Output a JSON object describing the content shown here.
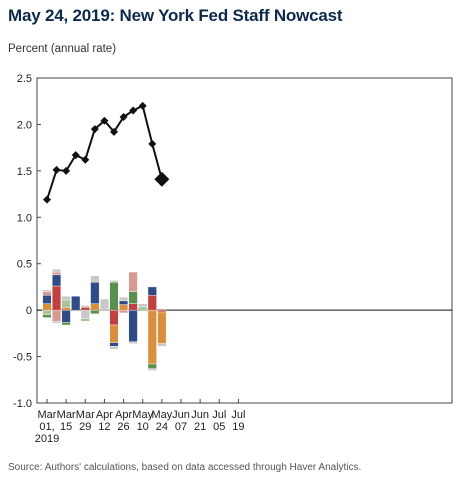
{
  "title": "May 24, 2019: New York Fed Staff Nowcast",
  "unit_label": "Percent (annual rate)",
  "source": "Source: Authors' calculations, based on data accessed through Haver Analytics.",
  "colors": {
    "line": "#111111",
    "navy": "#2e4a87",
    "red": "#c0413f",
    "orange": "#d9903e",
    "green": "#5a8f4e",
    "lightgreen": "#a8c59a",
    "pink": "#d69a90",
    "gray": "#c8c8c8"
  },
  "chart_data": {
    "type": "line+stacked-bar",
    "ylim": [
      -1.0,
      2.5
    ],
    "yticks": [
      "2.5",
      "2.0",
      "1.5",
      "1.0",
      "0.5",
      "0",
      "-0.5",
      "-1.0"
    ],
    "ytick_values": [
      2.5,
      2.0,
      1.5,
      1.0,
      0.5,
      0,
      -0.5,
      -1.0
    ],
    "xticks": [
      {
        "line1": "Mar",
        "line2": "01,",
        "line3": "2019"
      },
      {
        "line1": "Mar",
        "line2": "15",
        "line3": ""
      },
      {
        "line1": "Mar",
        "line2": "29",
        "line3": ""
      },
      {
        "line1": "Apr",
        "line2": "12",
        "line3": ""
      },
      {
        "line1": "Apr",
        "line2": "26",
        "line3": ""
      },
      {
        "line1": "May",
        "line2": "10",
        "line3": ""
      },
      {
        "line1": "May",
        "line2": "24",
        "line3": ""
      },
      {
        "line1": "Jun",
        "line2": "07",
        "line3": ""
      },
      {
        "line1": "Jun",
        "line2": "21",
        "line3": ""
      },
      {
        "line1": "Jul",
        "line2": "05",
        "line3": ""
      },
      {
        "line1": "Jul",
        "line2": "19",
        "line3": ""
      }
    ],
    "weeks": [
      "Mar 01",
      "Mar 08",
      "Mar 15",
      "Mar 22",
      "Mar 29",
      "Apr 05",
      "Apr 12",
      "Apr 19",
      "Apr 26",
      "May 03",
      "May 10",
      "May 17",
      "May 24"
    ],
    "nowcast": [
      1.19,
      1.51,
      1.5,
      1.67,
      1.62,
      1.95,
      2.04,
      1.92,
      2.08,
      2.15,
      2.2,
      1.79,
      1.41
    ],
    "latest_index": 12,
    "contributions": [
      [
        [
          "lightgreen",
          -0.05
        ],
        [
          "green",
          -0.03
        ],
        [
          "orange",
          0.07
        ],
        [
          "navy",
          0.09
        ],
        [
          "pink",
          0.04
        ],
        [
          "gray",
          0.02
        ]
      ],
      [
        [
          "pink",
          -0.12
        ],
        [
          "gray",
          -0.02
        ],
        [
          "red",
          0.26
        ],
        [
          "navy",
          0.12
        ],
        [
          "pink",
          0.03
        ],
        [
          "gray",
          0.03
        ]
      ],
      [
        [
          "navy",
          -0.13
        ],
        [
          "green",
          -0.03
        ],
        [
          "orange",
          0.03
        ],
        [
          "lightgreen",
          0.08
        ],
        [
          "gray",
          0.04
        ]
      ],
      [
        [
          "navy",
          0.15
        ]
      ],
      [
        [
          "gray",
          -0.09
        ],
        [
          "lightgreen",
          -0.03
        ],
        [
          "red",
          0.03
        ],
        [
          "gray",
          0.02
        ]
      ],
      [
        [
          "green",
          -0.04
        ],
        [
          "orange",
          0.07
        ],
        [
          "navy",
          0.23
        ],
        [
          "gray",
          0.07
        ]
      ],
      [
        [
          "gray",
          0.12
        ]
      ],
      [
        [
          "red",
          -0.16
        ],
        [
          "orange",
          -0.19
        ],
        [
          "navy",
          -0.04
        ],
        [
          "gray",
          -0.03
        ],
        [
          "green",
          0.3
        ],
        [
          "gray",
          0.02
        ]
      ],
      [
        [
          "pink",
          -0.03
        ],
        [
          "orange",
          0.06
        ],
        [
          "navy",
          0.04
        ],
        [
          "gray",
          0.04
        ]
      ],
      [
        [
          "navy",
          -0.34
        ],
        [
          "gray",
          -0.02
        ],
        [
          "red",
          0.07
        ],
        [
          "green",
          0.13
        ],
        [
          "pink",
          0.21
        ]
      ],
      [
        [
          "lightgreen",
          0.04
        ],
        [
          "gray",
          0.03
        ]
      ],
      [
        [
          "orange",
          -0.58
        ],
        [
          "green",
          -0.05
        ],
        [
          "gray",
          -0.02
        ],
        [
          "red",
          0.16
        ],
        [
          "navy",
          0.09
        ]
      ],
      [
        [
          "red",
          -0.02
        ],
        [
          "orange",
          -0.34
        ],
        [
          "gray",
          -0.03
        ]
      ]
    ]
  }
}
